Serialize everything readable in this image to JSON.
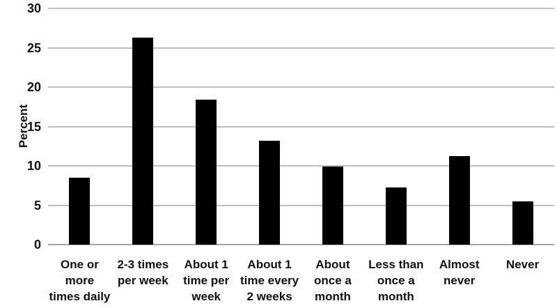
{
  "chart_data": {
    "type": "bar",
    "title": "",
    "xlabel": "",
    "ylabel": "Percent",
    "ylim": [
      0,
      30
    ],
    "yticks": [
      0,
      5,
      10,
      15,
      20,
      25,
      30
    ],
    "grid": true,
    "legend_position": "none",
    "bar_color": "#000000",
    "gridline_color": "#bfbfbf",
    "baseline_color": "#a3a3a3",
    "categories": [
      "One or more times daily",
      "2-3 times per week",
      "About 1 time per week",
      "About 1 time every 2 weeks",
      "About once a month",
      "Less than once a month",
      "Almost never",
      "Never"
    ],
    "category_label_lines": [
      [
        "One or",
        "more",
        "times daily"
      ],
      [
        "2-3 times",
        "per week"
      ],
      [
        "About 1",
        "time per",
        "week"
      ],
      [
        "About 1",
        "time every",
        "2 weeks"
      ],
      [
        "About",
        "once a",
        "month"
      ],
      [
        "Less than",
        "once a",
        "month"
      ],
      [
        "Almost",
        "never"
      ],
      [
        "Never"
      ]
    ],
    "values": [
      8.5,
      26.3,
      18.4,
      13.2,
      9.9,
      7.3,
      11.2,
      5.5
    ]
  }
}
